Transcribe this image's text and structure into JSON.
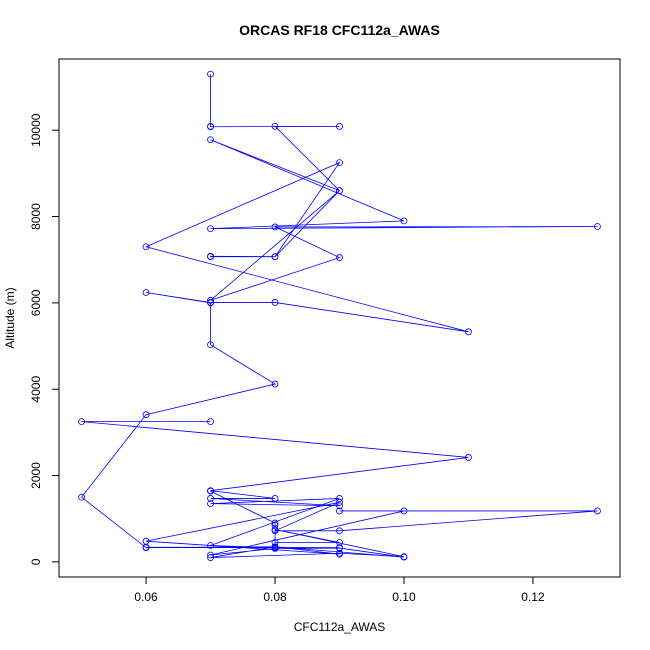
{
  "chart_data": {
    "type": "line",
    "title": "ORCAS RF18 CFC112a_AWAS",
    "xlabel": "CFC112a_AWAS",
    "ylabel": "Altitude (m)",
    "xlim": [
      0.0465,
      0.1335
    ],
    "ylim": [
      -350,
      11650
    ],
    "xticks": [
      0.06,
      0.08,
      0.1,
      0.12
    ],
    "xtick_labels": [
      "0.06",
      "0.08",
      "0.10",
      "0.12"
    ],
    "yticks": [
      0,
      2000,
      4000,
      6000,
      8000,
      10000
    ],
    "ytick_labels": [
      "0",
      "2000",
      "4000",
      "6000",
      "8000",
      "10000"
    ],
    "grid": false,
    "series": [
      {
        "color": "#0000ff",
        "marker": "open-circle",
        "points": [
          [
            0.07,
            11300
          ],
          [
            0.07,
            10090
          ],
          [
            0.07,
            10080
          ],
          [
            0.09,
            10090
          ],
          [
            0.08,
            10090
          ],
          [
            0.09,
            8600
          ],
          [
            0.07,
            9780
          ],
          [
            0.1,
            7900
          ],
          [
            0.07,
            7720
          ],
          [
            0.13,
            7770
          ],
          [
            0.08,
            7760
          ],
          [
            0.09,
            7050
          ],
          [
            0.07,
            6060
          ],
          [
            0.09,
            8600
          ],
          [
            0.08,
            7070
          ],
          [
            0.07,
            7070
          ],
          [
            0.07,
            7080
          ],
          [
            0.08,
            7070
          ],
          [
            0.09,
            9250
          ],
          [
            0.06,
            7300
          ],
          [
            0.11,
            5330
          ],
          [
            0.08,
            6010
          ],
          [
            0.07,
            6010
          ],
          [
            0.06,
            6240
          ],
          [
            0.07,
            6000
          ],
          [
            0.07,
            5030
          ],
          [
            0.08,
            4120
          ],
          [
            0.06,
            3410
          ],
          [
            0.05,
            1500
          ],
          [
            0.06,
            330
          ],
          [
            0.09,
            330
          ],
          [
            0.06,
            340
          ],
          [
            0.08,
            330
          ],
          [
            0.07,
            380
          ],
          [
            0.09,
            1470
          ],
          [
            0.07,
            1350
          ],
          [
            0.09,
            1300
          ],
          [
            0.07,
            1470
          ],
          [
            0.08,
            1470
          ],
          [
            0.07,
            1650
          ],
          [
            0.11,
            2420
          ],
          [
            0.05,
            3250
          ],
          [
            0.07,
            3250
          ]
        ]
      },
      {
        "color": "#0000ff",
        "marker": "open-circle",
        "points": [
          [
            0.07,
            1640
          ],
          [
            0.08,
            900
          ],
          [
            0.08,
            850
          ],
          [
            0.08,
            450
          ],
          [
            0.09,
            450
          ],
          [
            0.08,
            750
          ],
          [
            0.1,
            120
          ],
          [
            0.09,
            200
          ],
          [
            0.07,
            100
          ],
          [
            0.08,
            350
          ],
          [
            0.09,
            180
          ],
          [
            0.06,
            480
          ],
          [
            0.09,
            1380
          ],
          [
            0.08,
            720
          ],
          [
            0.09,
            720
          ],
          [
            0.13,
            1180
          ],
          [
            0.09,
            1180
          ],
          [
            0.1,
            1180
          ],
          [
            0.07,
            160
          ],
          [
            0.08,
            310
          ],
          [
            0.09,
            320
          ],
          [
            0.1,
            110
          ],
          [
            0.08,
            350
          ],
          [
            0.06,
            330
          ],
          [
            0.08,
            330
          ]
        ]
      }
    ]
  }
}
